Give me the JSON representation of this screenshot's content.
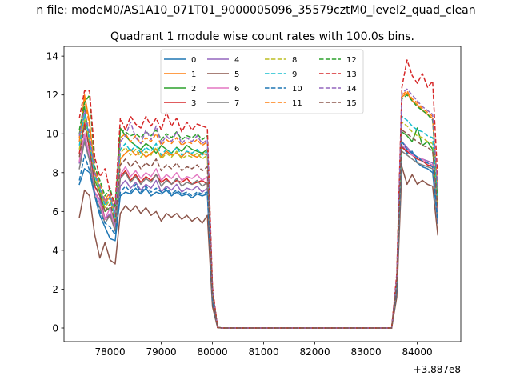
{
  "page_title": "n file: modeM0/AS1A10_071T01_9000005096_35579cztM0_level2_quad_clean",
  "chart_data": {
    "type": "line",
    "title": "Quadrant 1 module wise count rates with 100.0s bins.",
    "xlabel": "",
    "ylabel": "",
    "x_offset_label": "+3.887e8",
    "xlim": [
      77100,
      84850
    ],
    "ylim": [
      -0.7,
      14.5
    ],
    "xticks": [
      78000,
      79000,
      80000,
      81000,
      82000,
      83000,
      84000
    ],
    "xtick_labels": [
      "78000",
      "79000",
      "80000",
      "81000",
      "82000",
      "83000",
      "84000"
    ],
    "yticks": [
      0,
      2,
      4,
      6,
      8,
      10,
      12,
      14
    ],
    "ytick_labels": [
      "0",
      "2",
      "4",
      "6",
      "8",
      "10",
      "12",
      "14"
    ],
    "grid": false,
    "legend_position": "top-center",
    "legend_columns": 4,
    "x": [
      77400,
      77500,
      77600,
      77700,
      77800,
      77900,
      78000,
      78100,
      78200,
      78300,
      78400,
      78500,
      78600,
      78700,
      78800,
      78900,
      79000,
      79100,
      79200,
      79300,
      79400,
      79500,
      79600,
      79700,
      79800,
      79900,
      80000,
      80100,
      80200,
      80300,
      80400,
      80500,
      80600,
      80700,
      80800,
      80900,
      81000,
      81100,
      81200,
      81300,
      81400,
      81500,
      81600,
      81700,
      81800,
      81900,
      82000,
      82100,
      82200,
      82300,
      82400,
      82500,
      82600,
      82700,
      82800,
      82900,
      83000,
      83100,
      83200,
      83300,
      83400,
      83500,
      83600,
      83700,
      83800,
      83900,
      84000,
      84100,
      84200,
      84300,
      84400
    ],
    "series": [
      {
        "name": "0",
        "color": "#1f77b4",
        "dash": false,
        "values": [
          7.4,
          8.2,
          8.0,
          6.8,
          5.8,
          5.2,
          4.6,
          4.5,
          6.8,
          7.0,
          6.9,
          7.2,
          6.9,
          7.2,
          6.8,
          7.0,
          6.9,
          7.1,
          6.8,
          7.0,
          6.8,
          6.9,
          6.7,
          6.9,
          6.8,
          6.9,
          1.3,
          0.02,
          0,
          0,
          0,
          0,
          0,
          0,
          0,
          0,
          0,
          0,
          0,
          0,
          0,
          0,
          0,
          0,
          0,
          0,
          0,
          0,
          0,
          0,
          0,
          0,
          0,
          0,
          0,
          0,
          0,
          0,
          0,
          0,
          0,
          0,
          2.0,
          9.4,
          9.0,
          9.1,
          8.5,
          8.3,
          8.2,
          8.0,
          5.4
        ]
      },
      {
        "name": "1",
        "color": "#ff7f0e",
        "dash": false,
        "values": [
          9.6,
          12.0,
          10.6,
          8.0,
          7.2,
          6.4,
          6.8,
          5.8,
          8.7,
          9.0,
          9.2,
          8.9,
          9.1,
          8.8,
          9.0,
          9.2,
          8.8,
          9.1,
          8.9,
          9.0,
          8.8,
          9.1,
          8.9,
          8.8,
          9.0,
          8.9,
          1.8,
          0.03,
          0,
          0,
          0,
          0,
          0,
          0,
          0,
          0,
          0,
          0,
          0,
          0,
          0,
          0,
          0,
          0,
          0,
          0,
          0,
          0,
          0,
          0,
          0,
          0,
          0,
          0,
          0,
          0,
          0,
          0,
          0,
          0,
          0,
          0,
          2.6,
          11.9,
          12.1,
          11.7,
          11.5,
          11.2,
          11.0,
          10.8,
          6.8
        ]
      },
      {
        "name": "2",
        "color": "#2ca02c",
        "dash": false,
        "values": [
          10.0,
          11.4,
          9.5,
          7.6,
          7.0,
          6.0,
          6.2,
          5.4,
          10.3,
          9.9,
          9.6,
          9.4,
          9.2,
          9.5,
          9.3,
          9.0,
          9.4,
          9.2,
          9.0,
          9.3,
          9.1,
          9.4,
          9.2,
          9.1,
          9.0,
          9.2,
          1.9,
          0.03,
          0,
          0,
          0,
          0,
          0,
          0,
          0,
          0,
          0,
          0,
          0,
          0,
          0,
          0,
          0,
          0,
          0,
          0,
          0,
          0,
          0,
          0,
          0,
          0,
          0,
          0,
          0,
          0,
          0,
          0,
          0,
          0,
          0,
          0,
          2.5,
          10.1,
          9.9,
          9.6,
          10.3,
          9.4,
          9.6,
          9.2,
          6.2
        ]
      },
      {
        "name": "3",
        "color": "#d62728",
        "dash": false,
        "values": [
          9.0,
          10.6,
          9.2,
          7.3,
          6.8,
          5.6,
          5.8,
          5.0,
          7.8,
          8.1,
          7.6,
          7.9,
          7.5,
          7.8,
          7.6,
          7.9,
          7.5,
          7.7,
          7.4,
          7.6,
          7.5,
          7.7,
          7.4,
          7.5,
          7.6,
          7.4,
          1.6,
          0.02,
          0,
          0,
          0,
          0,
          0,
          0,
          0,
          0,
          0,
          0,
          0,
          0,
          0,
          0,
          0,
          0,
          0,
          0,
          0,
          0,
          0,
          0,
          0,
          0,
          0,
          0,
          0,
          0,
          0,
          0,
          0,
          0,
          0,
          0,
          2.2,
          9.3,
          9.1,
          8.9,
          8.7,
          8.6,
          8.4,
          8.3,
          5.8
        ]
      },
      {
        "name": "4",
        "color": "#9467bd",
        "dash": false,
        "values": [
          8.5,
          9.8,
          8.6,
          7.0,
          6.6,
          5.6,
          5.9,
          5.3,
          7.3,
          7.6,
          7.2,
          7.5,
          7.1,
          7.4,
          7.2,
          7.6,
          7.0,
          7.3,
          7.1,
          7.4,
          7.0,
          7.2,
          7.1,
          7.3,
          7.0,
          7.2,
          1.5,
          0.02,
          0,
          0,
          0,
          0,
          0,
          0,
          0,
          0,
          0,
          0,
          0,
          0,
          0,
          0,
          0,
          0,
          0,
          0,
          0,
          0,
          0,
          0,
          0,
          0,
          0,
          0,
          0,
          0,
          0,
          0,
          0,
          0,
          0,
          0,
          2.1,
          9.6,
          9.3,
          9.0,
          8.8,
          8.7,
          8.6,
          8.5,
          5.5
        ]
      },
      {
        "name": "5",
        "color": "#8c564b",
        "dash": false,
        "values": [
          5.7,
          7.1,
          6.8,
          4.8,
          3.6,
          4.4,
          3.5,
          3.3,
          5.9,
          6.3,
          6.0,
          6.3,
          5.9,
          6.2,
          5.8,
          6.0,
          5.5,
          5.9,
          5.7,
          5.9,
          5.6,
          5.8,
          5.5,
          5.7,
          5.4,
          5.8,
          1.1,
          0.01,
          0,
          0,
          0,
          0,
          0,
          0,
          0,
          0,
          0,
          0,
          0,
          0,
          0,
          0,
          0,
          0,
          0,
          0,
          0,
          0,
          0,
          0,
          0,
          0,
          0,
          0,
          0,
          0,
          0,
          0,
          0,
          0,
          0,
          0,
          1.6,
          8.3,
          7.4,
          7.9,
          7.4,
          7.6,
          7.4,
          7.3,
          4.8
        ]
      },
      {
        "name": "6",
        "color": "#e377c2",
        "dash": false,
        "values": [
          8.6,
          10.0,
          8.9,
          7.0,
          6.4,
          5.6,
          6.2,
          5.1,
          7.9,
          8.3,
          7.8,
          8.1,
          7.7,
          8.0,
          7.8,
          8.2,
          7.6,
          7.9,
          7.7,
          8.0,
          7.6,
          7.8,
          7.7,
          7.9,
          7.6,
          7.8,
          1.6,
          0.02,
          0,
          0,
          0,
          0,
          0,
          0,
          0,
          0,
          0,
          0,
          0,
          0,
          0,
          0,
          0,
          0,
          0,
          0,
          0,
          0,
          0,
          0,
          0,
          0,
          0,
          0,
          0,
          0,
          0,
          0,
          0,
          0,
          0,
          0,
          2.2,
          9.4,
          9.2,
          8.9,
          8.8,
          8.7,
          8.5,
          8.4,
          5.7
        ]
      },
      {
        "name": "7",
        "color": "#7f7f7f",
        "dash": false,
        "values": [
          8.2,
          9.6,
          8.6,
          6.8,
          6.2,
          5.4,
          5.8,
          5.0,
          7.7,
          8.0,
          7.5,
          7.8,
          7.4,
          7.7,
          7.5,
          7.9,
          7.3,
          7.6,
          7.4,
          7.7,
          7.3,
          7.5,
          7.4,
          7.6,
          7.3,
          7.5,
          1.5,
          0.02,
          0,
          0,
          0,
          0,
          0,
          0,
          0,
          0,
          0,
          0,
          0,
          0,
          0,
          0,
          0,
          0,
          0,
          0,
          0,
          0,
          0,
          0,
          0,
          0,
          0,
          0,
          0,
          0,
          0,
          0,
          0,
          0,
          0,
          0,
          2.1,
          9.1,
          8.9,
          8.7,
          8.5,
          8.4,
          8.3,
          8.2,
          5.6
        ]
      },
      {
        "name": "8",
        "color": "#bcbd22",
        "dash": true,
        "values": [
          9.2,
          10.8,
          9.6,
          7.7,
          7.1,
          6.2,
          6.6,
          5.6,
          9.0,
          9.3,
          8.9,
          9.2,
          8.8,
          9.1,
          8.9,
          9.3,
          8.7,
          9.0,
          8.8,
          9.1,
          8.7,
          8.9,
          8.8,
          9.0,
          8.7,
          8.9,
          1.8,
          0.03,
          0,
          0,
          0,
          0,
          0,
          0,
          0,
          0,
          0,
          0,
          0,
          0,
          0,
          0,
          0,
          0,
          0,
          0,
          0,
          0,
          0,
          0,
          0,
          0,
          0,
          0,
          0,
          0,
          0,
          0,
          0,
          0,
          0,
          0,
          2.4,
          10.6,
          10.4,
          10.1,
          9.9,
          9.8,
          9.6,
          9.5,
          6.4
        ]
      },
      {
        "name": "9",
        "color": "#17becf",
        "dash": true,
        "values": [
          9.4,
          11.0,
          9.7,
          7.8,
          7.2,
          6.3,
          6.7,
          5.7,
          9.2,
          9.5,
          9.1,
          9.4,
          9.0,
          9.3,
          9.1,
          9.5,
          8.9,
          9.2,
          9.0,
          9.3,
          8.9,
          9.1,
          9.0,
          9.2,
          8.9,
          9.1,
          1.8,
          0.03,
          0,
          0,
          0,
          0,
          0,
          0,
          0,
          0,
          0,
          0,
          0,
          0,
          0,
          0,
          0,
          0,
          0,
          0,
          0,
          0,
          0,
          0,
          0,
          0,
          0,
          0,
          0,
          0,
          0,
          0,
          0,
          0,
          0,
          0,
          2.4,
          10.9,
          10.7,
          10.4,
          10.2,
          10.1,
          9.9,
          9.8,
          6.6
        ]
      },
      {
        "name": "10",
        "color": "#1f77b4",
        "dash": true,
        "values": [
          7.6,
          8.9,
          8.1,
          6.9,
          6.0,
          5.4,
          5.2,
          4.8,
          7.0,
          7.3,
          7.0,
          7.4,
          7.0,
          7.3,
          7.0,
          7.2,
          7.0,
          7.2,
          6.9,
          7.1,
          6.9,
          7.0,
          6.8,
          7.0,
          6.9,
          7.0,
          1.4,
          0.02,
          0,
          0,
          0,
          0,
          0,
          0,
          0,
          0,
          0,
          0,
          0,
          0,
          0,
          0,
          0,
          0,
          0,
          0,
          0,
          0,
          0,
          0,
          0,
          0,
          0,
          0,
          0,
          0,
          0,
          0,
          0,
          0,
          0,
          0,
          2.0,
          9.6,
          9.2,
          9.0,
          8.8,
          8.6,
          8.5,
          8.3,
          5.5
        ]
      },
      {
        "name": "11",
        "color": "#ff7f0e",
        "dash": true,
        "values": [
          9.8,
          11.8,
          10.4,
          8.2,
          7.4,
          6.6,
          7.0,
          6.0,
          9.8,
          10.0,
          9.6,
          9.9,
          9.5,
          9.8,
          9.6,
          10.0,
          9.4,
          9.7,
          9.5,
          9.8,
          9.4,
          9.6,
          9.5,
          9.7,
          9.4,
          9.6,
          1.9,
          0.03,
          0,
          0,
          0,
          0,
          0,
          0,
          0,
          0,
          0,
          0,
          0,
          0,
          0,
          0,
          0,
          0,
          0,
          0,
          0,
          0,
          0,
          0,
          0,
          0,
          0,
          0,
          0,
          0,
          0,
          0,
          0,
          0,
          0,
          0,
          2.6,
          12.0,
          12.2,
          11.8,
          11.6,
          11.3,
          11.1,
          10.9,
          7.0
        ]
      },
      {
        "name": "12",
        "color": "#2ca02c",
        "dash": true,
        "values": [
          10.2,
          11.6,
          12.0,
          8.3,
          7.6,
          6.8,
          7.2,
          6.2,
          10.2,
          10.1,
          9.9,
          10.0,
          9.8,
          10.1,
          9.9,
          10.2,
          9.7,
          10.0,
          9.8,
          10.1,
          9.7,
          9.9,
          9.8,
          10.0,
          9.7,
          9.9,
          2.0,
          0.03,
          0,
          0,
          0,
          0,
          0,
          0,
          0,
          0,
          0,
          0,
          0,
          0,
          0,
          0,
          0,
          0,
          0,
          0,
          0,
          0,
          0,
          0,
          0,
          0,
          0,
          0,
          0,
          0,
          0,
          0,
          0,
          0,
          0,
          0,
          2.6,
          11.8,
          12.0,
          11.7,
          11.4,
          11.2,
          11.0,
          10.7,
          6.9
        ]
      },
      {
        "name": "13",
        "color": "#d62728",
        "dash": true,
        "values": [
          10.8,
          12.2,
          12.2,
          8.8,
          7.8,
          8.2,
          7.0,
          6.4,
          10.8,
          10.2,
          10.9,
          10.5,
          10.3,
          10.9,
          10.4,
          10.8,
          10.2,
          11.1,
          10.4,
          10.8,
          10.1,
          10.6,
          10.2,
          10.5,
          10.4,
          10.3,
          2.1,
          0.03,
          0,
          0,
          0,
          0,
          0,
          0,
          0,
          0,
          0,
          0,
          0,
          0,
          0,
          0,
          0,
          0,
          0,
          0,
          0,
          0,
          0,
          0,
          0,
          0,
          0,
          0,
          0,
          0,
          0,
          0,
          0,
          0,
          0,
          0,
          2.8,
          12.4,
          13.8,
          13.0,
          12.6,
          13.1,
          12.4,
          12.7,
          7.6
        ]
      },
      {
        "name": "14",
        "color": "#9467bd",
        "dash": true,
        "values": [
          9.9,
          11.2,
          10.0,
          8.0,
          7.3,
          6.5,
          6.9,
          5.9,
          9.6,
          9.9,
          10.6,
          9.8,
          9.5,
          10.2,
          9.7,
          10.4,
          9.5,
          9.9,
          9.6,
          10.1,
          9.5,
          9.8,
          9.6,
          9.9,
          9.5,
          9.7,
          1.9,
          0.03,
          0,
          0,
          0,
          0,
          0,
          0,
          0,
          0,
          0,
          0,
          0,
          0,
          0,
          0,
          0,
          0,
          0,
          0,
          0,
          0,
          0,
          0,
          0,
          0,
          0,
          0,
          0,
          0,
          0,
          0,
          0,
          0,
          0,
          0,
          2.6,
          12.1,
          12.3,
          12.0,
          11.7,
          11.4,
          11.2,
          11.0,
          7.1
        ]
      },
      {
        "name": "15",
        "color": "#8c564b",
        "dash": true,
        "values": [
          8.8,
          10.4,
          9.2,
          7.4,
          6.8,
          6.0,
          6.4,
          5.5,
          8.4,
          8.7,
          8.3,
          8.6,
          8.2,
          8.5,
          8.3,
          8.7,
          8.1,
          8.4,
          8.2,
          8.5,
          8.1,
          8.3,
          8.2,
          8.4,
          8.1,
          8.3,
          1.7,
          0.02,
          0,
          0,
          0,
          0,
          0,
          0,
          0,
          0,
          0,
          0,
          0,
          0,
          0,
          0,
          0,
          0,
          0,
          0,
          0,
          0,
          0,
          0,
          0,
          0,
          0,
          0,
          0,
          0,
          0,
          0,
          0,
          0,
          0,
          0,
          2.3,
          10.2,
          10.0,
          9.8,
          9.6,
          9.4,
          9.3,
          9.1,
          6.2
        ]
      }
    ]
  }
}
